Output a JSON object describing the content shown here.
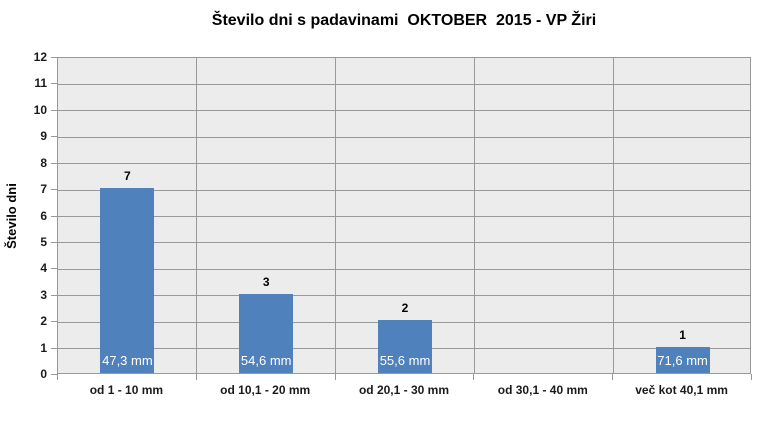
{
  "chart_data": {
    "type": "bar",
    "title": "Število dni s padavinami  OKTOBER  2015 - VP Žiri",
    "xlabel": "",
    "ylabel": "Število dni",
    "categories": [
      "od 1 - 10 mm",
      "od 10,1 - 20 mm",
      "od 20,1 - 30 mm",
      "od 30,1 - 40 mm",
      "več kot 40,1 mm"
    ],
    "values": [
      7,
      3,
      2,
      0,
      1
    ],
    "bar_labels": [
      "47,3 mm",
      "54,6 mm",
      "55,6 mm",
      "",
      "71,6 mm"
    ],
    "ylim": [
      0,
      12
    ],
    "ytick_step": 1,
    "grid": true,
    "legend": false,
    "colors": {
      "bar": "#4F81BD",
      "plot_bg": "#ECECEC",
      "gridline": "#999999",
      "axis_line": "#999999",
      "title_text": "#000000",
      "tick_text": "#1a1a1a",
      "bar_label_text": "#FFFFFF",
      "background": "#FFFFFF"
    }
  }
}
